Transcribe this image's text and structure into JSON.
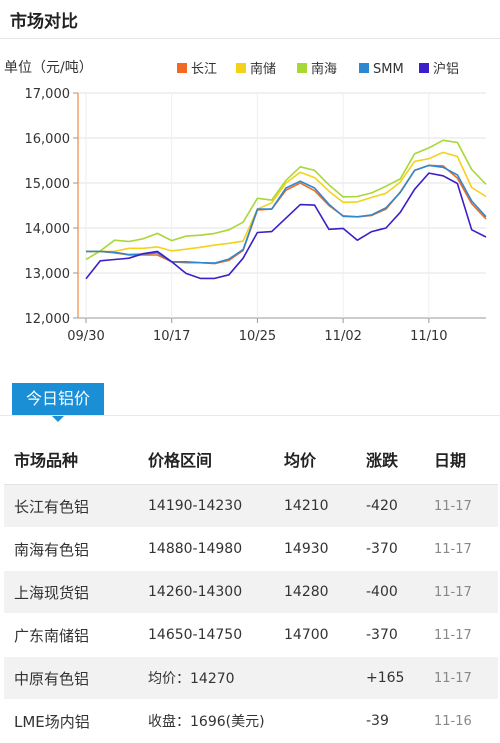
{
  "page": {
    "title": "市场对比"
  },
  "chart_data": {
    "type": "line",
    "ylabel": "单位（元/吨）",
    "ylim": [
      12000,
      17000
    ],
    "yticks": [
      "12,000",
      "13,000",
      "14,000",
      "15,000",
      "16,000",
      "17,000"
    ],
    "ytick_values": [
      12000,
      13000,
      14000,
      15000,
      16000,
      17000
    ],
    "xtick_labels": [
      "09/30",
      "10/17",
      "10/25",
      "11/02",
      "11/10"
    ],
    "xtick_index": [
      0,
      6,
      12,
      18,
      24
    ],
    "legend_position": "top-right",
    "grid": true,
    "series": [
      {
        "name": "长江",
        "color": "#f26a21",
        "values": [
          13480,
          13480,
          13450,
          13400,
          13400,
          13400,
          13250,
          13230,
          13230,
          13210,
          13280,
          13500,
          14400,
          14420,
          14840,
          15000,
          14830,
          14500,
          14270,
          14250,
          14280,
          14420,
          14800,
          15280,
          15390,
          15380,
          15110,
          14540,
          14200
        ]
      },
      {
        "name": "南储",
        "color": "#f4d21a",
        "values": [
          13480,
          13480,
          13480,
          13550,
          13550,
          13580,
          13490,
          13530,
          13570,
          13620,
          13660,
          13710,
          14420,
          14560,
          15000,
          15240,
          15120,
          14820,
          14570,
          14580,
          14680,
          14770,
          15020,
          15480,
          15540,
          15680,
          15590,
          14900,
          14700
        ]
      },
      {
        "name": "南海",
        "color": "#a8d736",
        "values": [
          13300,
          13490,
          13730,
          13700,
          13760,
          13880,
          13720,
          13820,
          13840,
          13880,
          13960,
          14130,
          14660,
          14620,
          15060,
          15360,
          15280,
          14960,
          14690,
          14700,
          14780,
          14930,
          15090,
          15650,
          15780,
          15950,
          15900,
          15300,
          14970
        ]
      },
      {
        "name": "SMM",
        "color": "#2e88cf",
        "values": [
          13480,
          13480,
          13460,
          13410,
          13420,
          13450,
          13250,
          13250,
          13230,
          13220,
          13310,
          13520,
          14420,
          14420,
          14890,
          15040,
          14890,
          14530,
          14260,
          14250,
          14290,
          14450,
          14790,
          15280,
          15390,
          15350,
          15180,
          14600,
          14250
        ]
      },
      {
        "name": "沪铝",
        "color": "#3c1fc8",
        "values": [
          12870,
          13270,
          13300,
          13330,
          13430,
          13480,
          13250,
          12990,
          12880,
          12880,
          12960,
          13330,
          13900,
          13920,
          14220,
          14520,
          14510,
          13970,
          13990,
          13730,
          13920,
          14000,
          14350,
          14860,
          15220,
          15160,
          14990,
          13960,
          13800
        ]
      }
    ]
  },
  "section_tab": "今日铝价",
  "table": {
    "headers": [
      "市场品种",
      "价格区间",
      "均价",
      "涨跌",
      "日期"
    ],
    "rows": [
      {
        "market": "长江有色铝",
        "range": "14190-14230",
        "avg": "14210",
        "change": "-420",
        "dir": "down",
        "date": "11-17"
      },
      {
        "market": "南海有色铝",
        "range": "14880-14980",
        "avg": "14930",
        "change": "-370",
        "dir": "down",
        "date": "11-17"
      },
      {
        "market": "上海现货铝",
        "range": "14260-14300",
        "avg": "14280",
        "change": "-400",
        "dir": "down",
        "date": "11-17"
      },
      {
        "market": "广东南储铝",
        "range": "14650-14750",
        "avg": "14700",
        "change": "-370",
        "dir": "down",
        "date": "11-17"
      },
      {
        "market": "中原有色铝",
        "range": "均价：14270",
        "avg": "",
        "change": "+165",
        "dir": "up",
        "date": "11-17"
      },
      {
        "market": "LME场内铝",
        "range": "收盘：1696(美元)",
        "avg": "",
        "change": "-39",
        "dir": "down",
        "date": "11-16"
      }
    ]
  }
}
